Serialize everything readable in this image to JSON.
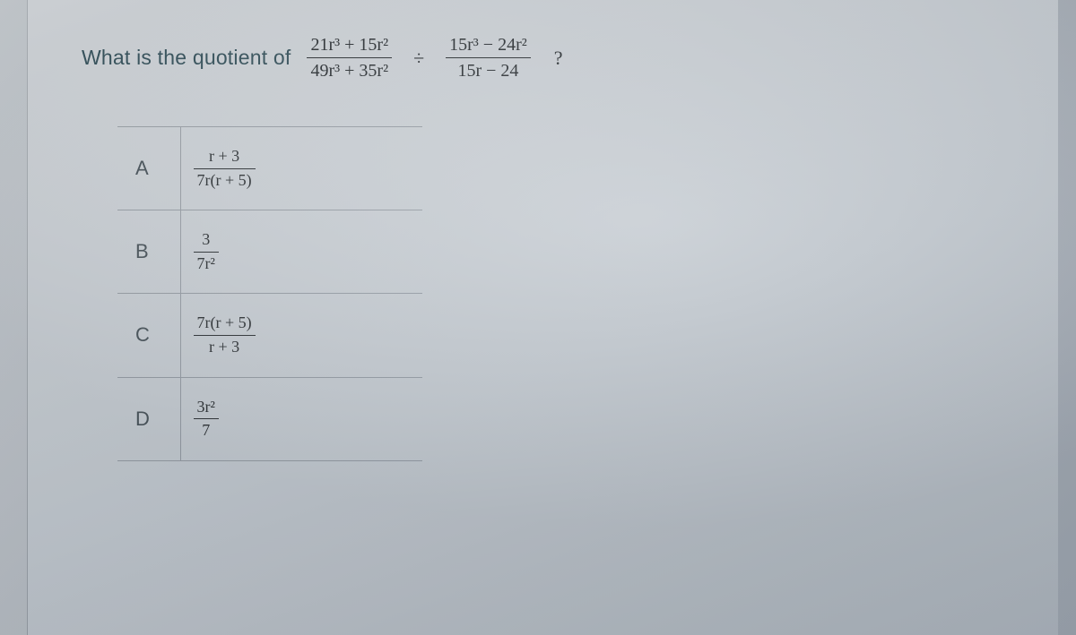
{
  "question": {
    "prompt_text": "What is the quotient of",
    "frac1": {
      "num": "21r³ + 15r²",
      "den": "49r³ + 35r²"
    },
    "operator": "÷",
    "frac2": {
      "num": "15r³ − 24r²",
      "den": "15r − 24"
    },
    "tail": "?"
  },
  "options": [
    {
      "label": "A",
      "num": "r + 3",
      "den": "7r(r + 5)"
    },
    {
      "label": "B",
      "num": "3",
      "den": "7r²"
    },
    {
      "label": "C",
      "num": "7r(r + 5)",
      "den": "r + 3"
    },
    {
      "label": "D",
      "num": "3r²",
      "den": "7"
    }
  ],
  "style": {
    "bg_gradient_from": "#c8cdd2",
    "bg_gradient_to": "#9aa2ad",
    "text_color": "#3d4347",
    "prompt_color": "#3a5660",
    "rule_color": "rgba(60,70,80,0.35)",
    "question_fontsize": 22,
    "option_letter_fontsize": 22,
    "option_math_fontsize": 18
  }
}
